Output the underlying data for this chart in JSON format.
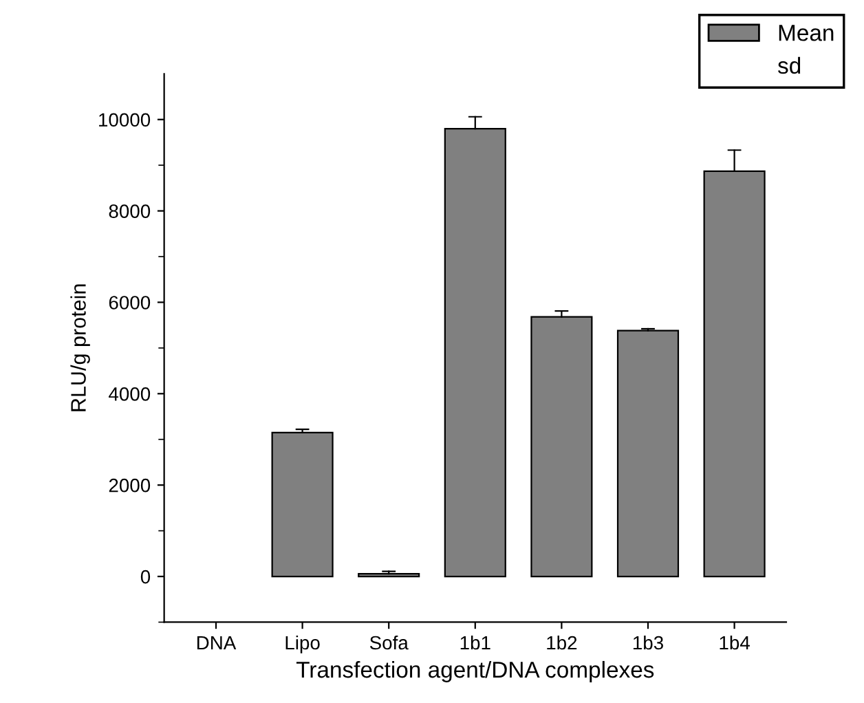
{
  "chart_data": {
    "type": "bar",
    "xlabel": "Transfection agent/DNA complexes",
    "ylabel": "RLU/g protein",
    "categories": [
      "DNA",
      "Lipo",
      "Sofa",
      "1b1",
      "1b2",
      "1b3",
      "1b4"
    ],
    "series": [
      {
        "name": "Mean",
        "color": "#808080",
        "values": [
          0,
          3150,
          60,
          9800,
          5680,
          5380,
          8870
        ],
        "errors": [
          null,
          [
            3150,
            3220
          ],
          [
            60,
            110
          ],
          [
            9800,
            10060
          ],
          [
            5680,
            5810
          ],
          [
            5380,
            5420
          ],
          [
            8870,
            9330
          ]
        ]
      }
    ],
    "annotations": [
      "sd"
    ],
    "ylim": [
      -1000,
      11000
    ],
    "yticks": [
      0,
      2000,
      4000,
      6000,
      8000,
      10000
    ],
    "grid": false,
    "legend": "top right"
  }
}
